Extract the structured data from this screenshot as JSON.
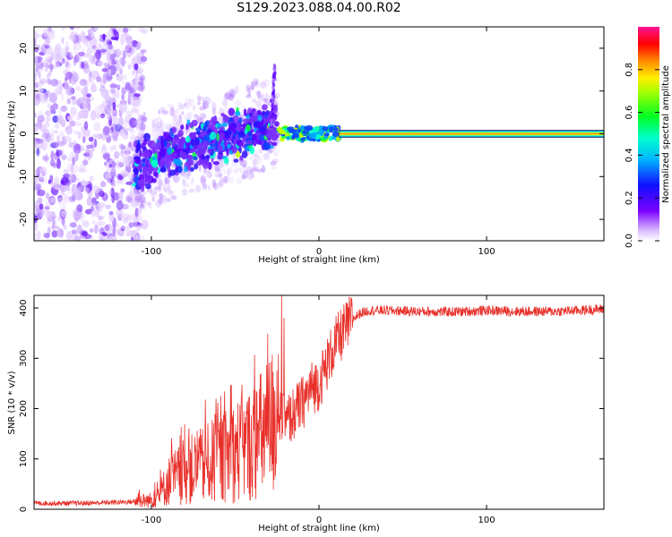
{
  "page_title": "S129.2023.088.04.00.R02",
  "colors": {
    "signal_line": "#ff8c00",
    "snr_line": "#e8302a",
    "spectrogram_noise": "#7a2cff"
  },
  "colorbar": {
    "label": "Normalized spectral amplitude",
    "ticks": [
      "0.0",
      "0.2",
      "0.4",
      "0.6",
      "0.8"
    ],
    "tick_values": [
      0.0,
      0.2,
      0.4,
      0.6,
      0.8
    ],
    "range": [
      0,
      1
    ],
    "colormap": "rainbow (white-violet-blue-cyan-green-yellow-red-magenta)"
  },
  "chart_data": [
    {
      "type": "heatmap",
      "title": "S129.2023.088.04.00.R02",
      "xlabel": "Height of straight line (km)",
      "ylabel": "Frequency (Hz)",
      "xlim": [
        -170,
        170
      ],
      "ylim": [
        -25,
        25
      ],
      "x_ticks": [
        -100,
        0,
        100
      ],
      "x_tick_labels": [
        "-100",
        "0",
        "100"
      ],
      "y_ticks": [
        -20,
        -10,
        0,
        10,
        20
      ],
      "y_tick_labels": [
        "-20",
        "-10",
        "0",
        "10",
        "20"
      ],
      "grid": false,
      "features": {
        "noise_region_x": [
          -170,
          -110
        ],
        "scintillation_region_x": [
          -110,
          -25
        ],
        "scintillation_center_freq": [
          [
            -105,
            -7
          ],
          [
            -80,
            -3
          ],
          [
            -55,
            -1
          ],
          [
            -30,
            2
          ]
        ],
        "transition_region_x": [
          -25,
          12
        ],
        "clean_carrier_x": [
          12,
          170
        ],
        "carrier_frequency": 0
      }
    },
    {
      "type": "line",
      "xlabel": "Height of straight line (km)",
      "ylabel": "SNR (10 * v/v)",
      "xlim": [
        -170,
        170
      ],
      "ylim": [
        0,
        425
      ],
      "x_ticks": [
        -100,
        0,
        100
      ],
      "x_tick_labels": [
        "-100",
        "0",
        "100"
      ],
      "y_ticks": [
        0,
        100,
        200,
        300,
        400
      ],
      "y_tick_labels": [
        "0",
        "100",
        "200",
        "300",
        "400"
      ],
      "grid": false,
      "series": [
        {
          "x": [
            -170,
            -140,
            -110,
            -100,
            -95,
            -90,
            -80,
            -70,
            -60,
            -50,
            -40,
            -30,
            -25,
            -20,
            -15,
            -10,
            -5,
            0,
            5,
            10,
            15,
            20,
            25,
            30,
            40,
            60,
            80,
            100,
            120,
            140,
            160,
            170
          ],
          "y": [
            12,
            12,
            15,
            18,
            30,
            55,
            75,
            85,
            100,
            115,
            130,
            160,
            190,
            170,
            190,
            210,
            240,
            250,
            290,
            330,
            355,
            378,
            390,
            395,
            395,
            393,
            392,
            395,
            393,
            393,
            396,
            398
          ]
        }
      ]
    }
  ]
}
